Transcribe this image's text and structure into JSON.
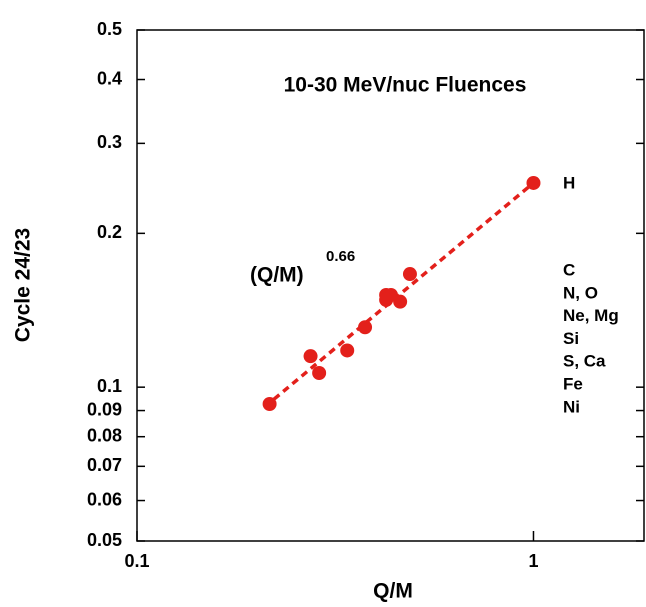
{
  "chart_data": {
    "type": "scatter",
    "title": "10-30 MeV/nuc Fluences",
    "x_label": "Q/M",
    "y_label": "Cycle 24/23",
    "log_x": true,
    "log_y": true,
    "xlim": [
      0.1,
      1.9
    ],
    "ylim": [
      0.05,
      0.5
    ],
    "xticks": [
      0.1,
      1
    ],
    "yticks": [
      0.05,
      0.06,
      0.07,
      0.08,
      0.09,
      0.1,
      0.2,
      0.3,
      0.4,
      0.5
    ],
    "series": [
      {
        "color": "#e3201b",
        "x": [
          1,
          0.488,
          0.425,
          0.437,
          0.425,
          0.461,
          0.376,
          0.339,
          0.274,
          0.288,
          0.216
        ],
        "values": [
          0.251,
          0.1665,
          0.1515,
          0.1515,
          0.1482,
          0.147,
          0.131,
          0.118,
          0.115,
          0.1066,
          0.0927
        ]
      }
    ],
    "fit": {
      "label": "(Q/M)",
      "exponent": "0.66",
      "color": "#e3201b",
      "x": [
        0.21,
        1
      ],
      "values": [
        0.0915,
        0.251
      ]
    },
    "annotations": [
      "H",
      "C",
      "N, O",
      "Ne, Mg",
      "Si",
      "S, Ca",
      "Fe",
      "Ni"
    ]
  }
}
